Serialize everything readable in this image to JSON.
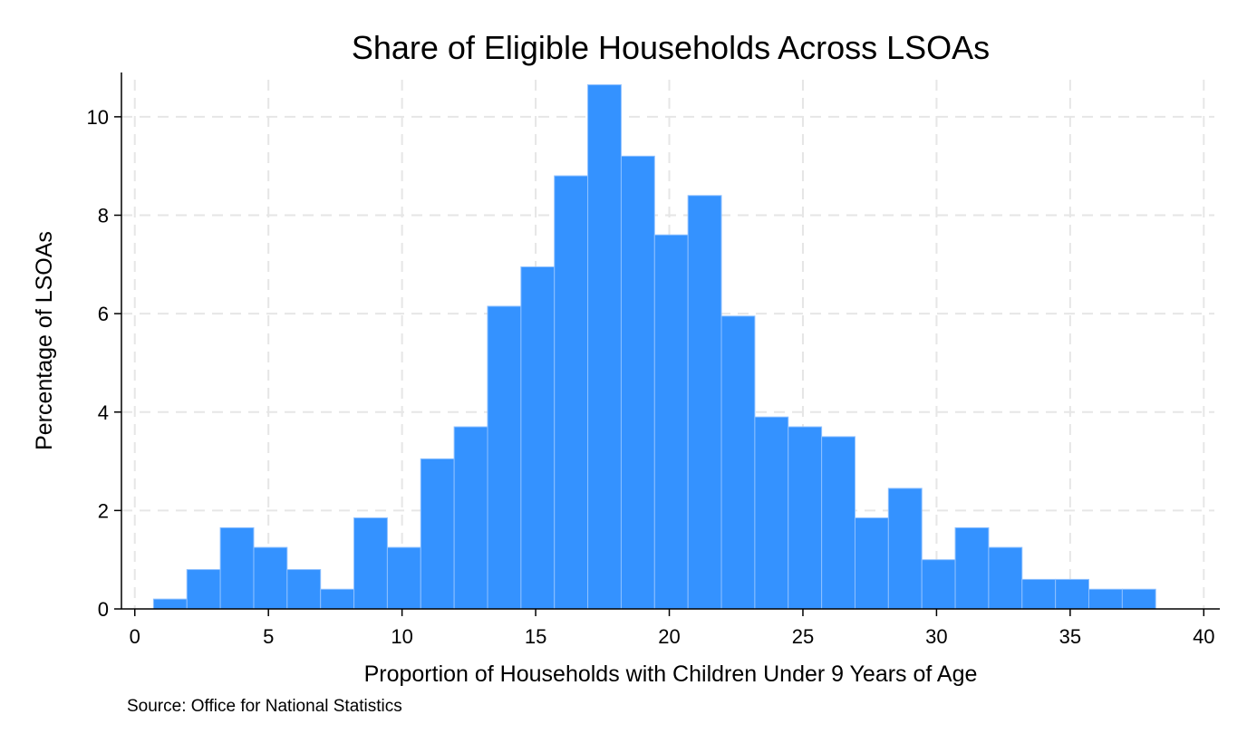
{
  "chart_data": {
    "type": "bar",
    "title": "Share of Eligible Households Across LSOAs",
    "xlabel": "Proportion of Households with Children Under 9 Years of Age",
    "ylabel": "Percentage of LSOAs",
    "note": "Source: Office for National Statistics",
    "xlim": [
      -0.5,
      40.6
    ],
    "ylim": [
      0,
      10.9
    ],
    "x_ticks": [
      0,
      5,
      10,
      15,
      20,
      25,
      30,
      35,
      40
    ],
    "x_tick_labels": [
      "0",
      "5",
      "10",
      "15",
      "20",
      "25",
      "30",
      "35",
      "40"
    ],
    "y_ticks": [
      0,
      2,
      4,
      6,
      8,
      10
    ],
    "y_tick_labels": [
      "0",
      "2",
      "4",
      "6",
      "8",
      "10"
    ],
    "grid": true,
    "bar_color": "#3492ff",
    "bin_width": 1.25,
    "bin_edges": [
      0.7,
      1.95,
      3.2,
      4.45,
      5.7,
      6.95,
      8.2,
      9.45,
      10.7,
      11.95,
      13.2,
      14.45,
      15.7,
      16.95,
      18.2,
      19.45,
      20.7,
      21.95,
      23.2,
      24.45,
      25.7,
      26.95,
      28.2,
      29.45,
      30.7,
      31.95,
      33.2,
      34.45,
      35.7,
      36.95,
      38.2
    ],
    "values": [
      0.2,
      0.8,
      1.65,
      1.25,
      0.8,
      0.4,
      1.85,
      1.25,
      3.05,
      3.7,
      6.15,
      6.95,
      8.8,
      10.65,
      9.2,
      7.6,
      8.4,
      5.95,
      3.9,
      3.7,
      3.5,
      1.85,
      2.45,
      1.0,
      1.65,
      1.25,
      0.6,
      0.6,
      0.4,
      0.4
    ]
  },
  "colors": {
    "bar": "#3492ff",
    "bar_edge": "#8ec0ff",
    "grid": "#e6e6e6",
    "text": "#000000",
    "background": "#ffffff"
  }
}
